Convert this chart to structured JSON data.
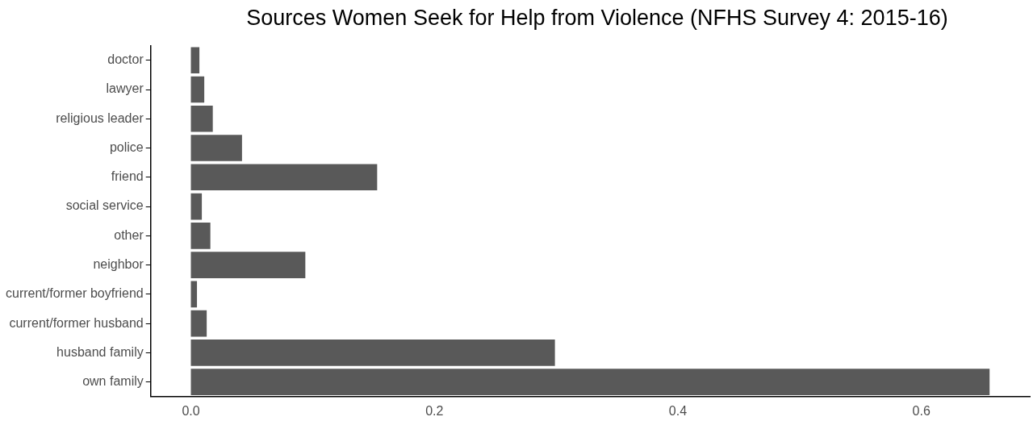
{
  "chart_data": {
    "type": "bar",
    "orientation": "horizontal",
    "title": "Sources Women Seek for Help from Violence (NFHS Survey 4: 2015-16)",
    "categories": [
      "doctor",
      "lawyer",
      "religious leader",
      "police",
      "friend",
      "social service",
      "other",
      "neighbor",
      "current/former boyfriend",
      "current/former husband",
      "husband family",
      "own family"
    ],
    "values": [
      0.007,
      0.011,
      0.018,
      0.042,
      0.153,
      0.009,
      0.016,
      0.094,
      0.005,
      0.013,
      0.299,
      0.656
    ],
    "color": "#595959",
    "xlim": [
      -0.033,
      0.689
    ],
    "xticks": [
      {
        "value": 0,
        "label": "0.0"
      },
      {
        "value": 0.2,
        "label": "0.2"
      },
      {
        "value": 0.4,
        "label": "0.4"
      },
      {
        "value": 0.6,
        "label": "0.6"
      }
    ],
    "grid": false,
    "legend": false
  }
}
